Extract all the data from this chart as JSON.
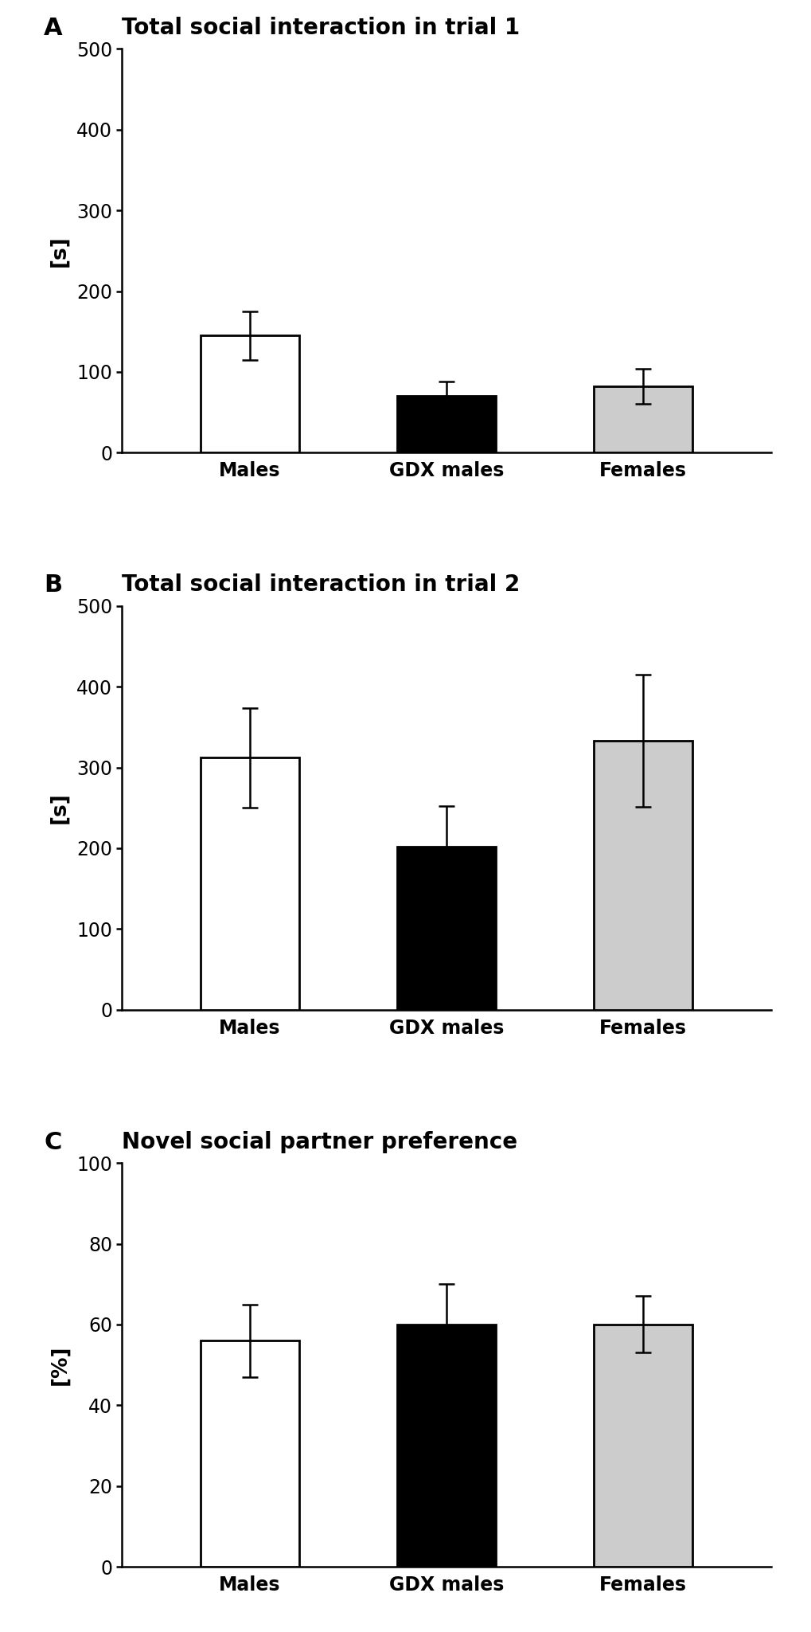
{
  "panels": [
    {
      "label": "A",
      "title": "Total social interaction in trial 1",
      "ylabel": "[s]",
      "ylim": [
        0,
        500
      ],
      "yticks": [
        0,
        100,
        200,
        300,
        400,
        500
      ],
      "categories": [
        "Males",
        "GDX males",
        "Females"
      ],
      "values": [
        145,
        70,
        82
      ],
      "errors": [
        30,
        18,
        22
      ],
      "bar_colors": [
        "#ffffff",
        "#000000",
        "#cccccc"
      ],
      "bar_edgecolors": [
        "#000000",
        "#000000",
        "#000000"
      ]
    },
    {
      "label": "B",
      "title": "Total social interaction in trial 2",
      "ylabel": "[s]",
      "ylim": [
        0,
        500
      ],
      "yticks": [
        0,
        100,
        200,
        300,
        400,
        500
      ],
      "categories": [
        "Males",
        "GDX males",
        "Females"
      ],
      "values": [
        312,
        202,
        333
      ],
      "errors": [
        62,
        50,
        82
      ],
      "bar_colors": [
        "#ffffff",
        "#000000",
        "#cccccc"
      ],
      "bar_edgecolors": [
        "#000000",
        "#000000",
        "#000000"
      ]
    },
    {
      "label": "C",
      "title": "Novel social partner preference",
      "ylabel": "[%]",
      "ylim": [
        0,
        100
      ],
      "yticks": [
        0,
        20,
        40,
        60,
        80,
        100
      ],
      "categories": [
        "Males",
        "GDX males",
        "Females"
      ],
      "values": [
        56,
        60,
        60
      ],
      "errors": [
        9,
        10,
        7
      ],
      "bar_colors": [
        "#ffffff",
        "#000000",
        "#cccccc"
      ],
      "bar_edgecolors": [
        "#000000",
        "#000000",
        "#000000"
      ]
    }
  ],
  "background_color": "#ffffff",
  "bar_width": 0.5,
  "title_fontsize": 20,
  "label_fontsize": 22,
  "tick_fontsize": 17,
  "axis_label_fontsize": 19,
  "error_capsize": 7,
  "error_linewidth": 1.8,
  "bar_linewidth": 2.0
}
